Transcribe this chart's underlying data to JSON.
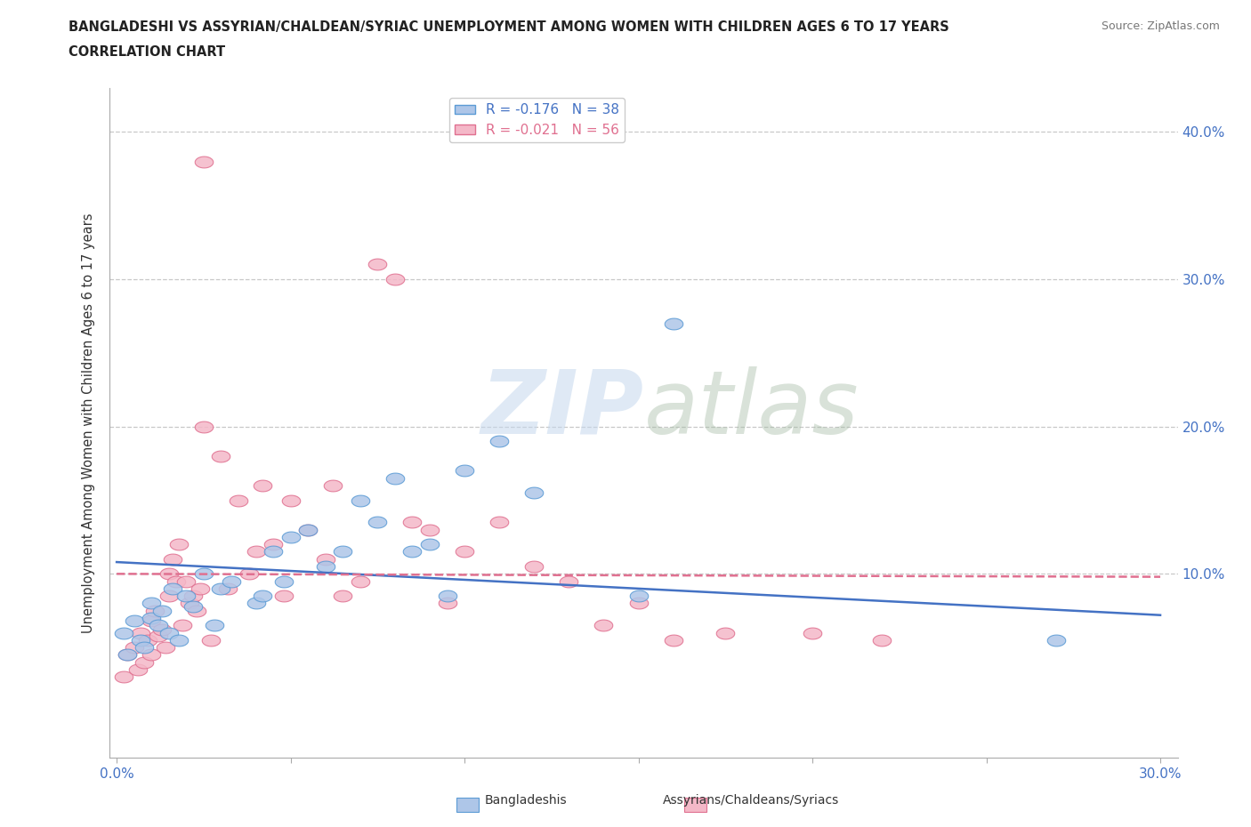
{
  "title_line1": "BANGLADESHI VS ASSYRIAN/CHALDEAN/SYRIAC UNEMPLOYMENT AMONG WOMEN WITH CHILDREN AGES 6 TO 17 YEARS",
  "title_line2": "CORRELATION CHART",
  "source_text": "Source: ZipAtlas.com",
  "ylabel": "Unemployment Among Women with Children Ages 6 to 17 years",
  "xlim": [
    -0.002,
    0.305
  ],
  "ylim": [
    -0.025,
    0.43
  ],
  "xticks": [
    0.0,
    0.05,
    0.1,
    0.15,
    0.2,
    0.25,
    0.3
  ],
  "yticks": [
    0.0,
    0.1,
    0.2,
    0.3,
    0.4
  ],
  "grid_color": "#c8c8c8",
  "background_color": "#ffffff",
  "bangladeshi_R": -0.176,
  "bangladeshi_N": 38,
  "assyrian_R": -0.021,
  "assyrian_N": 56,
  "bangladeshi_color": "#aec6e8",
  "bangladeshi_edge": "#5b9bd5",
  "assyrian_color": "#f4b8c8",
  "assyrian_edge": "#e07090",
  "blue_line_color": "#4472c4",
  "pink_line_color": "#e07090",
  "bangladeshi_x": [
    0.002,
    0.003,
    0.005,
    0.007,
    0.008,
    0.01,
    0.01,
    0.012,
    0.013,
    0.015,
    0.016,
    0.018,
    0.02,
    0.022,
    0.025,
    0.028,
    0.03,
    0.033,
    0.04,
    0.042,
    0.045,
    0.048,
    0.05,
    0.055,
    0.06,
    0.065,
    0.07,
    0.075,
    0.08,
    0.085,
    0.09,
    0.095,
    0.1,
    0.11,
    0.12,
    0.15,
    0.16,
    0.27
  ],
  "bangladeshi_y": [
    0.06,
    0.045,
    0.068,
    0.055,
    0.05,
    0.08,
    0.07,
    0.065,
    0.075,
    0.06,
    0.09,
    0.055,
    0.085,
    0.078,
    0.1,
    0.065,
    0.09,
    0.095,
    0.08,
    0.085,
    0.115,
    0.095,
    0.125,
    0.13,
    0.105,
    0.115,
    0.15,
    0.135,
    0.165,
    0.115,
    0.12,
    0.085,
    0.17,
    0.19,
    0.155,
    0.085,
    0.27,
    0.055
  ],
  "assyrian_x": [
    0.002,
    0.003,
    0.005,
    0.006,
    0.007,
    0.008,
    0.009,
    0.01,
    0.01,
    0.011,
    0.012,
    0.013,
    0.014,
    0.015,
    0.015,
    0.016,
    0.017,
    0.018,
    0.019,
    0.02,
    0.021,
    0.022,
    0.023,
    0.024,
    0.025,
    0.027,
    0.03,
    0.032,
    0.035,
    0.038,
    0.04,
    0.042,
    0.045,
    0.048,
    0.05,
    0.055,
    0.06,
    0.062,
    0.065,
    0.07,
    0.075,
    0.08,
    0.085,
    0.09,
    0.095,
    0.1,
    0.11,
    0.12,
    0.13,
    0.14,
    0.15,
    0.16,
    0.175,
    0.2,
    0.22,
    0.025
  ],
  "assyrian_y": [
    0.03,
    0.045,
    0.05,
    0.035,
    0.06,
    0.04,
    0.055,
    0.068,
    0.045,
    0.075,
    0.058,
    0.062,
    0.05,
    0.1,
    0.085,
    0.11,
    0.095,
    0.12,
    0.065,
    0.095,
    0.08,
    0.085,
    0.075,
    0.09,
    0.2,
    0.055,
    0.18,
    0.09,
    0.15,
    0.1,
    0.115,
    0.16,
    0.12,
    0.085,
    0.15,
    0.13,
    0.11,
    0.16,
    0.085,
    0.095,
    0.31,
    0.3,
    0.135,
    0.13,
    0.08,
    0.115,
    0.135,
    0.105,
    0.095,
    0.065,
    0.08,
    0.055,
    0.06,
    0.06,
    0.055,
    0.38
  ]
}
